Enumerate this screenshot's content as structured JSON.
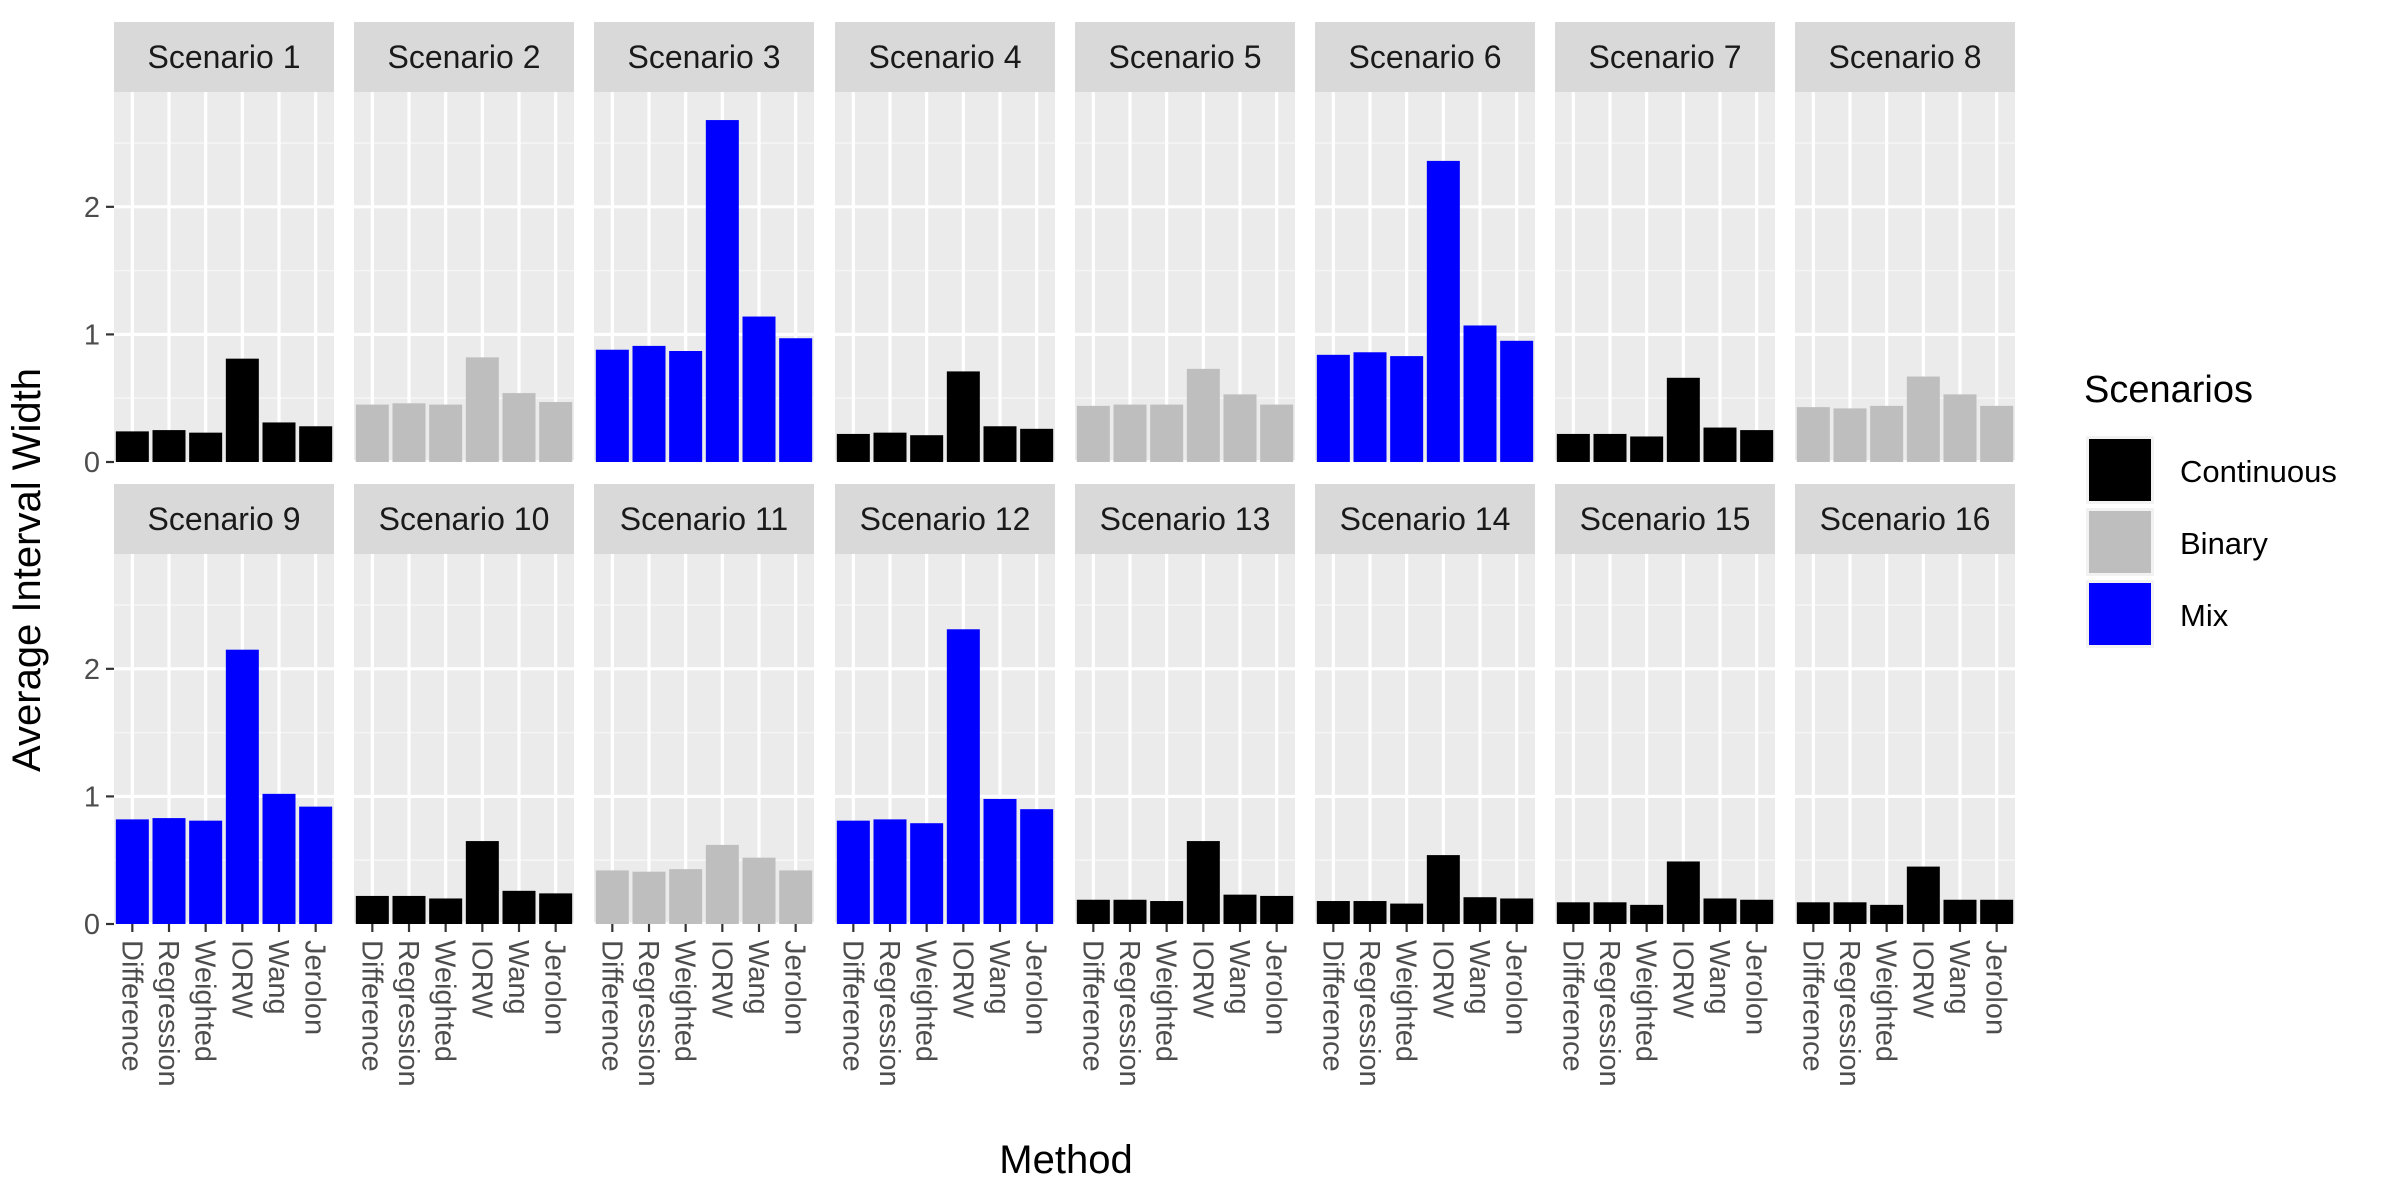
{
  "chart_data": {
    "type": "bar",
    "facet_layout": "2 rows x 8 columns",
    "xlabel": "Method",
    "ylabel": "Average Interval Width",
    "ylim": [
      0,
      2.9
    ],
    "yticks": [
      0,
      1,
      2
    ],
    "categories": [
      "Difference",
      "Regression",
      "Weighted",
      "IORW",
      "Wang",
      "Jerolon"
    ],
    "legend": {
      "title": "Scenarios",
      "position": "right",
      "items": [
        {
          "label": "Continuous",
          "color": "#000000"
        },
        {
          "label": "Binary",
          "color": "#bebebe"
        },
        {
          "label": "Mix",
          "color": "#0000ff"
        }
      ]
    },
    "panels": [
      {
        "title": "Scenario 1",
        "group": "Continuous",
        "values": [
          0.24,
          0.25,
          0.23,
          0.81,
          0.31,
          0.28
        ]
      },
      {
        "title": "Scenario 2",
        "group": "Binary",
        "values": [
          0.45,
          0.46,
          0.45,
          0.82,
          0.54,
          0.47
        ]
      },
      {
        "title": "Scenario 3",
        "group": "Mix",
        "values": [
          0.88,
          0.91,
          0.87,
          2.68,
          1.14,
          0.97
        ]
      },
      {
        "title": "Scenario 4",
        "group": "Continuous",
        "values": [
          0.22,
          0.23,
          0.21,
          0.71,
          0.28,
          0.26
        ]
      },
      {
        "title": "Scenario 5",
        "group": "Binary",
        "values": [
          0.44,
          0.45,
          0.45,
          0.73,
          0.53,
          0.45
        ]
      },
      {
        "title": "Scenario 6",
        "group": "Mix",
        "values": [
          0.84,
          0.86,
          0.83,
          2.36,
          1.07,
          0.95
        ]
      },
      {
        "title": "Scenario 7",
        "group": "Continuous",
        "values": [
          0.22,
          0.22,
          0.2,
          0.66,
          0.27,
          0.25
        ]
      },
      {
        "title": "Scenario 8",
        "group": "Binary",
        "values": [
          0.43,
          0.42,
          0.44,
          0.67,
          0.53,
          0.44
        ]
      },
      {
        "title": "Scenario 9",
        "group": "Mix",
        "values": [
          0.82,
          0.83,
          0.81,
          2.15,
          1.02,
          0.92
        ]
      },
      {
        "title": "Scenario 10",
        "group": "Continuous",
        "values": [
          0.22,
          0.22,
          0.2,
          0.65,
          0.26,
          0.24
        ]
      },
      {
        "title": "Scenario 11",
        "group": "Binary",
        "values": [
          0.42,
          0.41,
          0.43,
          0.62,
          0.52,
          0.42
        ]
      },
      {
        "title": "Scenario 12",
        "group": "Mix",
        "values": [
          0.81,
          0.82,
          0.79,
          2.31,
          0.98,
          0.9
        ]
      },
      {
        "title": "Scenario 13",
        "group": "Continuous",
        "values": [
          0.19,
          0.19,
          0.18,
          0.65,
          0.23,
          0.22
        ]
      },
      {
        "title": "Scenario 14",
        "group": "Continuous",
        "values": [
          0.18,
          0.18,
          0.16,
          0.54,
          0.21,
          0.2
        ]
      },
      {
        "title": "Scenario 15",
        "group": "Continuous",
        "values": [
          0.17,
          0.17,
          0.15,
          0.49,
          0.2,
          0.19
        ]
      },
      {
        "title": "Scenario 16",
        "group": "Continuous",
        "values": [
          0.17,
          0.17,
          0.15,
          0.45,
          0.19,
          0.19
        ]
      }
    ]
  }
}
